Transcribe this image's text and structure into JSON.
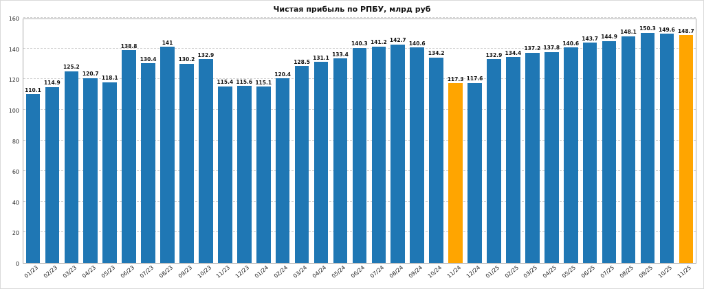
{
  "title": "Чистая прибыль по РПБУ, млрд руб",
  "colors": {
    "bar": "#1f77b4",
    "highlight": "#ffa500",
    "grid": "#d2d2d2",
    "axis": "#a8a8a8",
    "background": "#ffffff"
  },
  "chart_data": {
    "type": "bar",
    "title": "Чистая прибыль по РПБУ, млрд руб",
    "xlabel": "",
    "ylabel": "",
    "ylim": [
      0,
      160
    ],
    "yticks": [
      0,
      20,
      40,
      60,
      80,
      100,
      120,
      140,
      160
    ],
    "grid": true,
    "legend": "none",
    "categories": [
      "01/23",
      "02/23",
      "03/23",
      "04/23",
      "05/23",
      "06/23",
      "07/23",
      "08/23",
      "09/23",
      "10/23",
      "11/23",
      "12/23",
      "01/24",
      "02/24",
      "03/24",
      "04/24",
      "05/24",
      "06/24",
      "07/24",
      "08/24",
      "09/24",
      "10/24",
      "11/24",
      "12/24",
      "01/25",
      "02/25",
      "03/25",
      "04/25",
      "05/25",
      "06/25",
      "07/25",
      "08/25",
      "09/25",
      "10/25",
      "11/25"
    ],
    "values": [
      110.1,
      114.9,
      125.2,
      120.7,
      118.1,
      138.8,
      130.4,
      141,
      130.2,
      132.9,
      115.4,
      115.6,
      115.1,
      120.4,
      128.5,
      131.1,
      133.4,
      140.3,
      141.2,
      142.7,
      140.6,
      134.2,
      117.3,
      117.6,
      132.9,
      134.4,
      137.2,
      137.8,
      140.6,
      143.7,
      144.9,
      148.1,
      150.3,
      149.6,
      148.7
    ],
    "highlight_indices": [
      22,
      34
    ]
  }
}
